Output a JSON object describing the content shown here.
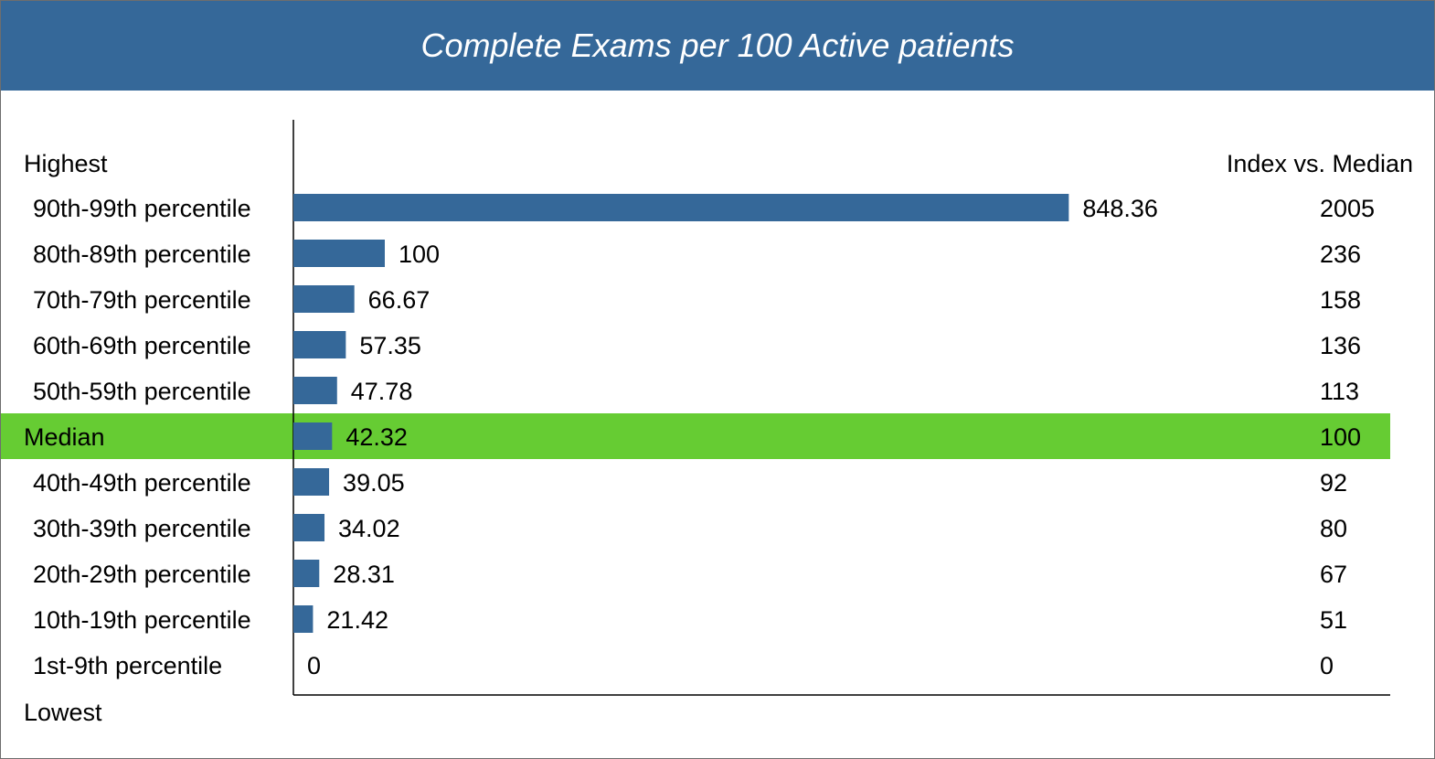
{
  "title": "Complete Exams per 100 Active patients",
  "top_label": "Highest",
  "bottom_label": "Lowest",
  "index_header": "Index vs. Median",
  "colors": {
    "bar": "#356899",
    "median_highlight": "#66cc33",
    "header": "#356899"
  },
  "chart_data": {
    "type": "bar",
    "orientation": "horizontal",
    "title": "Complete Exams per 100 Active patients",
    "categories": [
      "90th-99th percentile",
      "80th-89th percentile",
      "70th-79th percentile",
      "60th-69th percentile",
      "50th-59th percentile",
      "Median",
      "40th-49th percentile",
      "30th-39th percentile",
      "20th-29th percentile",
      "10th-19th percentile",
      "1st-9th percentile"
    ],
    "values": [
      848.36,
      100,
      66.67,
      57.35,
      47.78,
      42.32,
      39.05,
      34.02,
      28.31,
      21.42,
      0
    ],
    "value_labels": [
      "848.36",
      "100",
      "66.67",
      "57.35",
      "47.78",
      "42.32",
      "39.05",
      "34.02",
      "28.31",
      "21.42",
      "0"
    ],
    "index_values": [
      "2005",
      "236",
      "158",
      "136",
      "113",
      "100",
      "92",
      "80",
      "67",
      "51",
      "0"
    ],
    "highlight_category": "Median",
    "xlim": [
      0,
      1200
    ],
    "grid": false,
    "legend": "none"
  }
}
